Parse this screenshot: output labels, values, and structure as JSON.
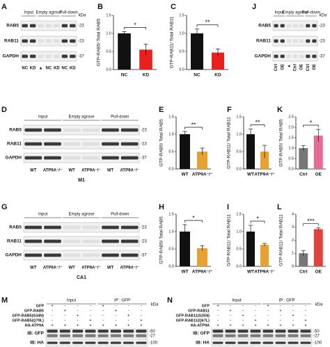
{
  "chart_data": [
    {
      "type": "bar",
      "panel": "B",
      "y_label": "GTP-RAB5/ Total RAB5",
      "categories": [
        "NC",
        "KD"
      ],
      "values": [
        1.0,
        0.55
      ],
      "errors": [
        0.05,
        0.15
      ],
      "colors": [
        "#111111",
        "#e8211f"
      ],
      "significance": "*",
      "ylim": [
        0,
        1.5
      ],
      "yticks": [
        {
          "value": 0,
          "label": "0.0"
        },
        {
          "value": 0.5,
          "label": "0.5"
        },
        {
          "value": 1,
          "label": "1.0"
        },
        {
          "value": 1.5,
          "label": "1.5"
        }
      ]
    },
    {
      "type": "bar",
      "panel": "C",
      "y_label": "GTP-RAB11/ Total RAB11",
      "categories": [
        "NC",
        "KD"
      ],
      "values": [
        1.0,
        0.47
      ],
      "errors": [
        0.12,
        0.1
      ],
      "colors": [
        "#111111",
        "#e8211f"
      ],
      "significance": "**",
      "ylim": [
        0,
        1.5
      ],
      "yticks": [
        {
          "value": 0,
          "label": "0.0"
        },
        {
          "value": 0.5,
          "label": "0.5"
        },
        {
          "value": 1,
          "label": "1.0"
        },
        {
          "value": 1.5,
          "label": "1.5"
        }
      ]
    },
    {
      "type": "bar",
      "panel": "E",
      "y_label": "GTP-RAB5/ Total RAB5",
      "categories": [
        "WT",
        "ATP9A⁻/⁻"
      ],
      "values": [
        1.0,
        0.5
      ],
      "errors": [
        0.08,
        0.1
      ],
      "colors": [
        "#111111",
        "#e8a031"
      ],
      "significance": "**",
      "ylim": [
        0,
        1.5
      ],
      "yticks": [
        {
          "value": 0,
          "label": "0.0"
        },
        {
          "value": 0.5,
          "label": "0.5"
        },
        {
          "value": 1,
          "label": "1.0"
        },
        {
          "value": 1.5,
          "label": "1.5"
        }
      ]
    },
    {
      "type": "bar",
      "panel": "F",
      "y_label": "GTP-RAB11/ Total RAB11",
      "categories": [
        "WT",
        "ATP9A⁻/⁻"
      ],
      "values": [
        1.0,
        0.5
      ],
      "errors": [
        0.15,
        0.18
      ],
      "colors": [
        "#111111",
        "#e8a031"
      ],
      "significance": "**",
      "ylim": [
        0,
        1.5
      ],
      "yticks": [
        {
          "value": 0,
          "label": "0.0"
        },
        {
          "value": 0.5,
          "label": "0.5"
        },
        {
          "value": 1,
          "label": "1.0"
        },
        {
          "value": 1.5,
          "label": "1.5"
        }
      ]
    },
    {
      "type": "bar",
      "panel": "K",
      "y_label": "GTP-RAB5/ Total RAB5",
      "categories": [
        "Ctrl",
        "OE"
      ],
      "values": [
        1.0,
        1.6
      ],
      "errors": [
        0.12,
        0.3
      ],
      "colors": [
        "#777777",
        "#e86a95"
      ],
      "significance": "*",
      "ylim": [
        0,
        2.5
      ],
      "yticks": [
        {
          "value": 0,
          "label": "0.0"
        },
        {
          "value": 0.5,
          "label": "0.5"
        },
        {
          "value": 1,
          "label": "1.0"
        },
        {
          "value": 1.5,
          "label": "1.5"
        },
        {
          "value": 2,
          "label": "2.0"
        },
        {
          "value": 2.5,
          "label": "2.5"
        }
      ]
    },
    {
      "type": "bar",
      "panel": "H",
      "y_label": "GTP-RAB5/ Total RAB5",
      "categories": [
        "WT",
        "ATP9A⁻/⁻"
      ],
      "values": [
        1.0,
        0.52
      ],
      "errors": [
        0.2,
        0.07
      ],
      "colors": [
        "#111111",
        "#e8a031"
      ],
      "significance": "*",
      "ylim": [
        0,
        1.5
      ],
      "yticks": [
        {
          "value": 0,
          "label": "0.0"
        },
        {
          "value": 0.5,
          "label": "0.5"
        },
        {
          "value": 1,
          "label": "1.0"
        },
        {
          "value": 1.5,
          "label": "1.5"
        }
      ]
    },
    {
      "type": "bar",
      "panel": "I",
      "y_label": "GTP-RAB11/ Total RAB11",
      "categories": [
        "WT",
        "ATP9A⁻/⁻"
      ],
      "values": [
        1.0,
        0.62
      ],
      "errors": [
        0.18,
        0.04
      ],
      "colors": [
        "#111111",
        "#e8a031"
      ],
      "significance": "*",
      "ylim": [
        0,
        1.5
      ],
      "yticks": [
        {
          "value": 0,
          "label": "0.0"
        },
        {
          "value": 0.5,
          "label": "0.5"
        },
        {
          "value": 1,
          "label": "1.0"
        },
        {
          "value": 1.5,
          "label": "1.5"
        }
      ]
    },
    {
      "type": "bar",
      "panel": "L",
      "y_label": "GTP-RAB11/ Total RAB11",
      "categories": [
        "Ctrl",
        "OE"
      ],
      "values": [
        1.0,
        2.85
      ],
      "errors": [
        0.2,
        0.1
      ],
      "colors": [
        "#777777",
        "#e0433a"
      ],
      "significance": "***",
      "ylim": [
        0,
        4
      ],
      "yticks": [
        0,
        1,
        2,
        3,
        4
      ]
    }
  ],
  "blots": [
    {
      "panel": "A",
      "headers": [
        "Input",
        "Empty agrose",
        "Pull-down"
      ],
      "kda_unit": "kDa",
      "rows": [
        {
          "name": "RAB5",
          "markers": [
            "-23"
          ]
        },
        {
          "name": "RAB11",
          "markers": [
            "-23"
          ]
        },
        {
          "name": "GAPDH",
          "markers": [
            "-37"
          ]
        }
      ],
      "lanes": [
        "NC",
        "KD",
        "▲",
        "NC",
        "KD",
        "NC",
        "KD"
      ]
    },
    {
      "panel": "J",
      "headers": [
        "Input",
        "Empty agrose",
        "Pull-down"
      ],
      "kda_unit": "kDa",
      "rows": [
        {
          "name": "RAB5",
          "markers": [
            "-23"
          ]
        },
        {
          "name": "RAB11",
          "markers": [
            "-23"
          ]
        },
        {
          "name": "GAPDH",
          "markers": [
            "-37"
          ]
        }
      ],
      "lanes": [
        "Ctrl",
        "OE",
        "▲",
        "Ctrl",
        "OE",
        "Ctrl",
        "OE"
      ]
    },
    {
      "panel": "D",
      "headers": [
        "Input",
        "Empty agrose",
        "Pull-down"
      ],
      "rows": [
        {
          "name": "RAB5",
          "markers": [
            "-23"
          ]
        },
        {
          "name": "RAB11",
          "markers": [
            "-23"
          ]
        },
        {
          "name": "GAPDH",
          "markers": [
            "-37"
          ]
        }
      ],
      "lanes": [
        "WT",
        "ATP9A⁻/⁻",
        "WT",
        "ATP9A⁻/⁻",
        "WT",
        "ATP9A⁻/⁻"
      ],
      "caption": "M1"
    },
    {
      "panel": "G",
      "headers": [
        "Input",
        "Empty agrose",
        "Pull-down"
      ],
      "rows": [
        {
          "name": "RAB5",
          "markers": [
            "-23"
          ]
        },
        {
          "name": "RAB11",
          "markers": [
            "-23"
          ]
        },
        {
          "name": "GAPDH",
          "markers": [
            "-37"
          ]
        }
      ],
      "lanes": [
        "WT",
        "ATP9A⁻/⁻",
        "WT",
        "ATP9A⁻/⁻",
        "WT",
        "ATP9A⁻/⁻"
      ],
      "caption": "CA1"
    },
    {
      "panel": "M",
      "headers": [
        "Input",
        "IP : GFP"
      ],
      "kda_unit": "kDa",
      "conditions": [
        {
          "name": "GFP",
          "signs": [
            "+",
            "-",
            "-",
            "-",
            "+",
            "-",
            "-",
            "-"
          ]
        },
        {
          "name": "GFP-RAB5",
          "signs": [
            "-",
            "+",
            "-",
            "-",
            "-",
            "+",
            "-",
            "-"
          ]
        },
        {
          "name": "GFP-RAB5(S34N)",
          "signs": [
            "-",
            "-",
            "+",
            "-",
            "-",
            "-",
            "+",
            "-"
          ]
        },
        {
          "name": "GFP-RAB5(Q79L)",
          "signs": [
            "-",
            "-",
            "-",
            "+",
            "-",
            "-",
            "-",
            "+"
          ]
        },
        {
          "name": "HA-ATP9A",
          "signs": [
            "+",
            "+",
            "+",
            "+",
            "+",
            "+",
            "+",
            "+"
          ]
        }
      ],
      "rows": [
        {
          "name": "IB: GFP",
          "markers": [
            "-50",
            "-27"
          ]
        },
        {
          "name": "IB: HA",
          "markers": [
            "-100"
          ]
        }
      ]
    },
    {
      "panel": "N",
      "headers": [
        "Input",
        "IP : GFP"
      ],
      "kda_unit": "kDa",
      "conditions": [
        {
          "name": "GFP",
          "signs": [
            "+",
            "-",
            "-",
            "-",
            "+",
            "-",
            "-",
            "-"
          ]
        },
        {
          "name": "GFP-RAB11",
          "signs": [
            "-",
            "+",
            "-",
            "-",
            "-",
            "+",
            "-",
            "-"
          ]
        },
        {
          "name": "GFP-RAB11(S25N)",
          "signs": [
            "-",
            "-",
            "+",
            "-",
            "-",
            "-",
            "+",
            "-"
          ]
        },
        {
          "name": "GFP-RAB11(Q67L)",
          "signs": [
            "-",
            "-",
            "-",
            "+",
            "-",
            "-",
            "-",
            "+"
          ]
        },
        {
          "name": "HA-ATP9A",
          "signs": [
            "+",
            "+",
            "+",
            "+",
            "+",
            "+",
            "+",
            "+"
          ]
        }
      ],
      "rows": [
        {
          "name": "IB: GFP",
          "markers": [
            "-50",
            "-27"
          ]
        },
        {
          "name": "IB: HA",
          "markers": [
            "-100"
          ]
        }
      ]
    }
  ]
}
